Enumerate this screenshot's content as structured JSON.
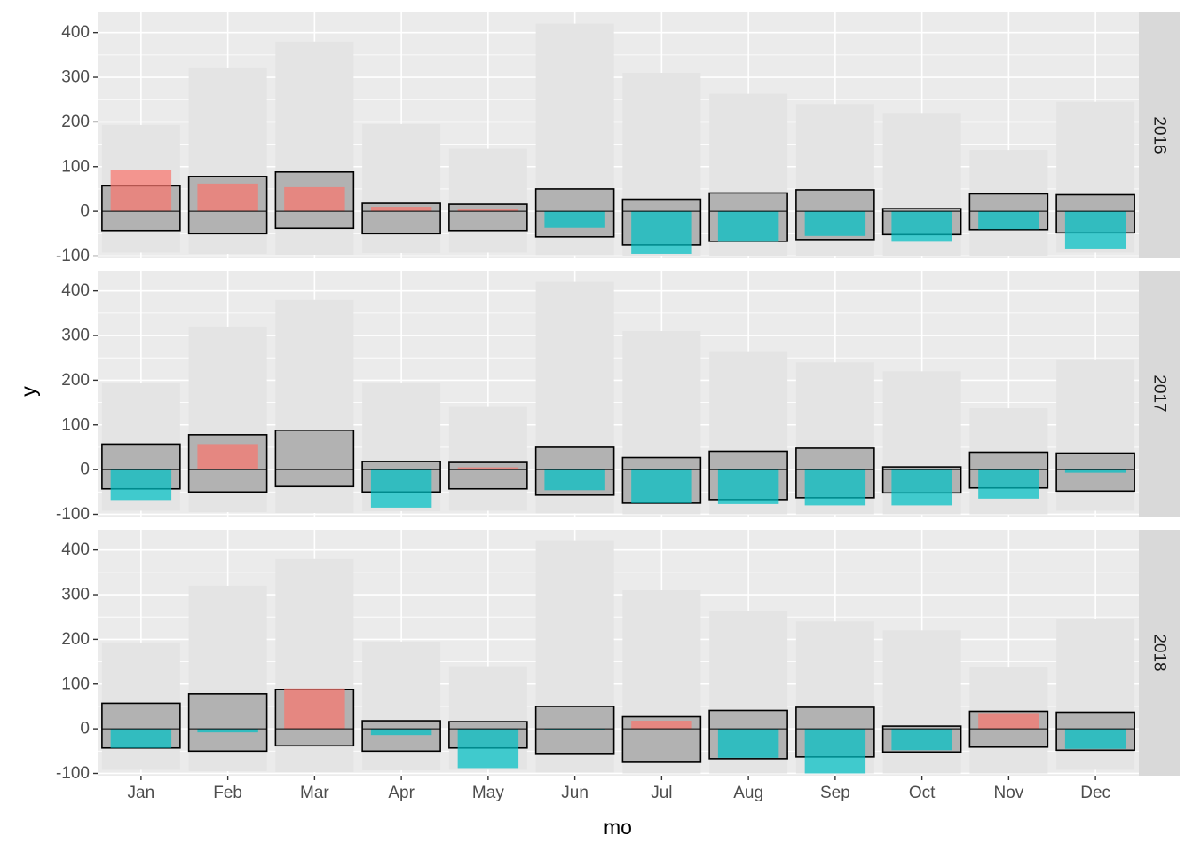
{
  "chart_data": {
    "type": "bar",
    "xlabel": "mo",
    "ylabel": "y",
    "ylim": [
      -105,
      445
    ],
    "yticks": [
      -100,
      0,
      100,
      200,
      300,
      400
    ],
    "categories": [
      "Jan",
      "Feb",
      "Mar",
      "Apr",
      "May",
      "Jun",
      "Jul",
      "Aug",
      "Sep",
      "Oct",
      "Nov",
      "Dec"
    ],
    "facets": [
      "2016",
      "2017",
      "2018"
    ],
    "envelope": {
      "max": [
        193,
        320,
        380,
        195,
        140,
        420,
        310,
        263,
        240,
        220,
        137,
        245
      ],
      "min": [
        -92,
        -95,
        -97,
        -93,
        -92,
        -98,
        -100,
        -100,
        -100,
        -100,
        -100,
        -92
      ]
    },
    "typical_range": {
      "high": [
        57,
        78,
        88,
        18,
        16,
        50,
        27,
        41,
        48,
        6,
        39,
        37
      ],
      "low": [
        -43,
        -50,
        -38,
        -50,
        -43,
        -57,
        -75,
        -67,
        -63,
        -52,
        -41,
        -48
      ]
    },
    "deviation": [
      [
        92,
        62,
        54,
        10,
        4,
        -37,
        -95,
        -68,
        -55,
        -68,
        -40,
        -85
      ],
      [
        -68,
        57,
        2,
        -85,
        5,
        -46,
        -75,
        -77,
        -80,
        -80,
        -65,
        -7
      ],
      [
        -43,
        -8,
        90,
        -14,
        -88,
        -3,
        18,
        -65,
        -100,
        -48,
        35,
        -45
      ]
    ],
    "colors": {
      "panel": "#ebebeb",
      "envelope": "#e4e4e4",
      "typical": "#b2b2b2",
      "positive": "#f8766d",
      "negative": "#00bfc4",
      "strip": "#d9d9d9",
      "grid": "#ffffff"
    },
    "grid": true
  }
}
